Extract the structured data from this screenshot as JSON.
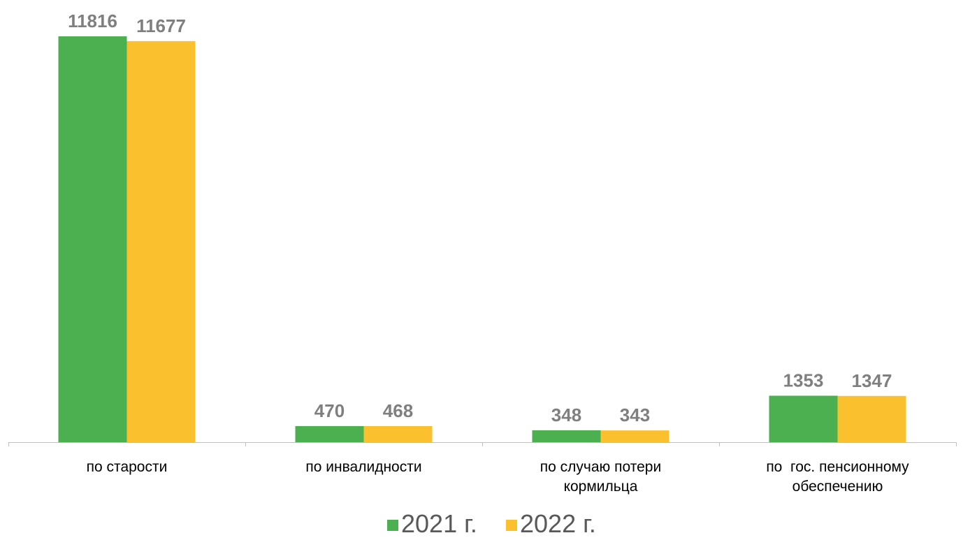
{
  "chart_data": {
    "type": "bar",
    "categories": [
      [
        "по старости"
      ],
      [
        "по инвалидности"
      ],
      [
        "по случаю потери",
        "кормильца"
      ],
      [
        "по  гос. пенсионному",
        "обеспечению"
      ]
    ],
    "series": [
      {
        "name": "2021 г.",
        "color": "#4caf50",
        "values": [
          11816,
          470,
          348,
          1353
        ]
      },
      {
        "name": "2022 г.",
        "color": "#fbc02d",
        "values": [
          11677,
          468,
          343,
          1347
        ]
      }
    ],
    "ylim": [
      0,
      11816
    ],
    "grid": false,
    "legend_position": "bottom"
  }
}
